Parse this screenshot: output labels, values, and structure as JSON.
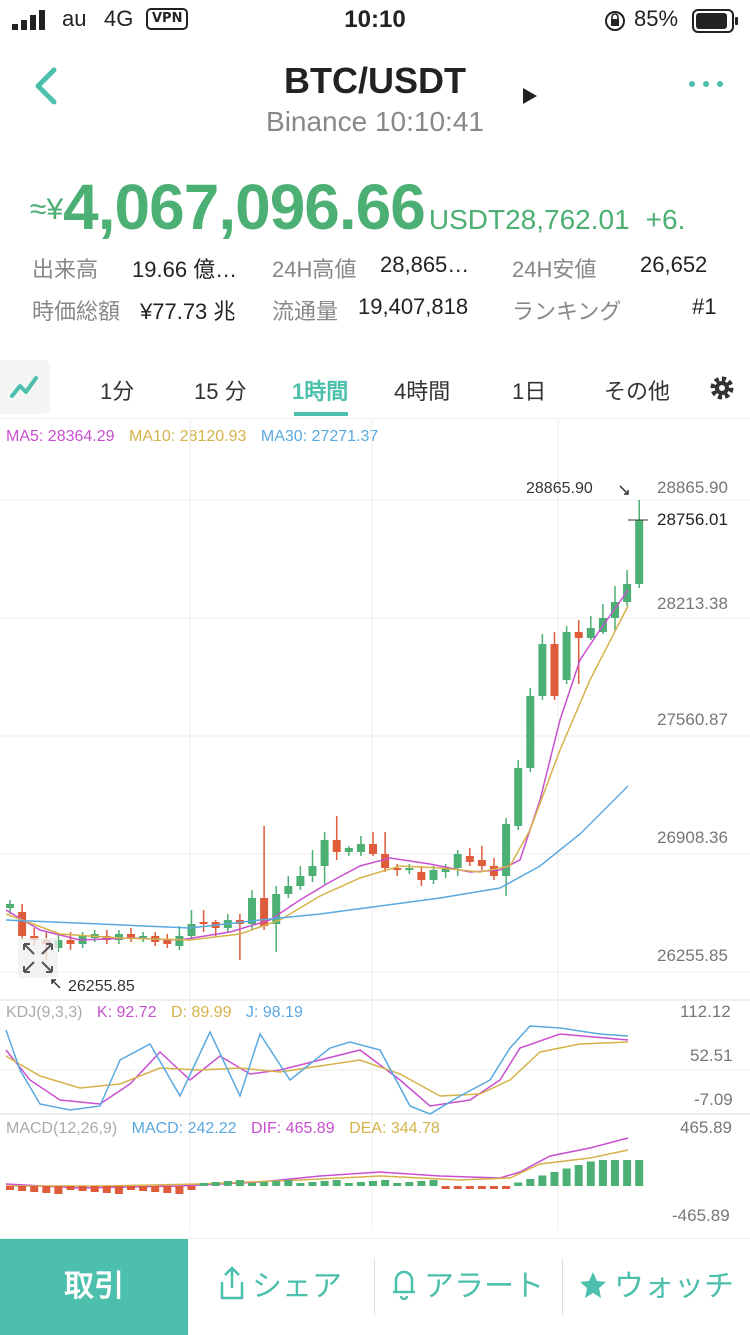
{
  "status_bar": {
    "carrier": "au",
    "network": "4G",
    "vpn": "VPN",
    "time": "10:10",
    "battery": "85%"
  },
  "header": {
    "title": "BTC/USDT",
    "subtitle": "Binance 10:10:41",
    "back_icon": "chevron-left-icon",
    "more_icon": "ellipsis-icon",
    "play_icon": "play-icon"
  },
  "price": {
    "approx_symbol": "≈¥",
    "jpy": "4,067,096.66",
    "unit": "USDT",
    "usdt": "28,762.01",
    "change": "+6."
  },
  "stats": [
    {
      "label": "出来高",
      "value": "19.66 億…"
    },
    {
      "label": "24H高値",
      "value": "28,865…"
    },
    {
      "label": "24H安値",
      "value": "26,652"
    },
    {
      "label": "時価総額",
      "value": "¥77.73 兆"
    },
    {
      "label": "流通量",
      "value": "19,407,818"
    },
    {
      "label": "ランキング",
      "value": "#1"
    }
  ],
  "tabs": [
    "1分",
    "15 分",
    "1時間",
    "4時間",
    "1日",
    "その他"
  ],
  "active_tab": 2,
  "ma_legend": {
    "ma5": "MA5: 28364.29",
    "ma10": "MA10: 28120.93",
    "ma30": "MA30: 27271.37"
  },
  "price_axis": [
    "28865.90",
    "28756.01",
    "28213.38",
    "27560.87",
    "26908.36",
    "26255.85"
  ],
  "chart_annotations": {
    "high": "28865.90",
    "low": "26255.85"
  },
  "kdj": {
    "name": "KDJ(9,3,3)",
    "k": "K: 92.72",
    "d": "D: 89.99",
    "j": "J: 98.19",
    "axis": [
      "112.12",
      "52.51",
      "-7.09"
    ]
  },
  "macd": {
    "name": "MACD(12,26,9)",
    "macd": "MACD: 242.22",
    "dif": "DIF: 465.89",
    "dea": "DEA: 344.78",
    "axis": [
      "465.89",
      "-465.89"
    ]
  },
  "colors": {
    "accent": "#4cbfad",
    "up": "#4caf73",
    "down": "#e05b3a",
    "ma5": "#c94fd0",
    "ma10": "#d6b24a",
    "ma30": "#5aa9e0"
  },
  "bottom_bar": {
    "trade": "取引",
    "share": "シェア",
    "alert": "アラート",
    "watch": "ウォッチ"
  }
}
